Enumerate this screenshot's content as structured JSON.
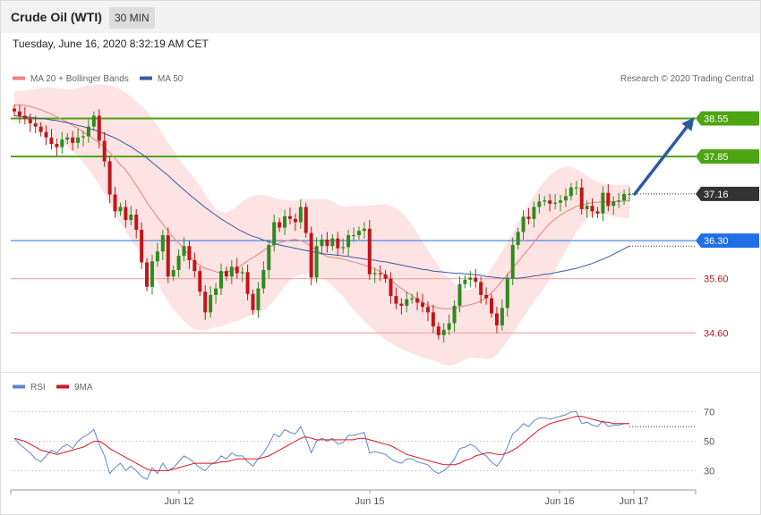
{
  "header": {
    "title": "Crude Oil (WTI)",
    "timeframe": "30 MIN"
  },
  "datetime": "Tuesday, June 16, 2020 8:32:19 AM CET",
  "legend": {
    "ma20": "MA 20 + Bollinger Bands",
    "ma50": "MA 50",
    "credit": "Research © 2020 Trading Central",
    "rsi": "RSI",
    "rsi_ma": "9MA"
  },
  "colors": {
    "bull": "#2e8b1f",
    "bear": "#c0161b",
    "bollinger_fill": "#fde3e3",
    "ma20": "#e98080",
    "ma50": "#3a5aa0",
    "rsi": "#5b86d6",
    "rsi_ma": "#e0141e",
    "resistance": "#4ea512",
    "support": "#1f6fe5",
    "support_light": "#f5a3a3",
    "arrow": "#2c5aa0",
    "last_price": "#333333"
  },
  "chart_data": [
    {
      "type": "candlestick",
      "title": "Crude Oil (WTI)",
      "timeframe": "30 MIN",
      "x_ticks": [
        "Jun 12",
        "Jun 15",
        "Jun 16",
        "Jun 17"
      ],
      "ylim": [
        33.8,
        39.2
      ],
      "levels": [
        {
          "label": "38.55",
          "value": 38.55,
          "kind": "resistance"
        },
        {
          "label": "37.85",
          "value": 37.85,
          "kind": "resistance"
        },
        {
          "label": "37.16",
          "value": 37.16,
          "kind": "last"
        },
        {
          "label": "36.30",
          "value": 36.3,
          "kind": "support"
        },
        {
          "label": "35.60",
          "value": 35.6,
          "kind": "support_light"
        },
        {
          "label": "34.60",
          "value": 34.6,
          "kind": "support_light"
        }
      ],
      "close": [
        38.68,
        38.6,
        38.54,
        38.46,
        38.4,
        38.3,
        38.2,
        38.08,
        38.02,
        38.16,
        38.2,
        38.1,
        38.2,
        38.22,
        38.4,
        38.6,
        38.14,
        37.76,
        37.15,
        36.84,
        36.92,
        36.68,
        36.78,
        36.5,
        35.9,
        35.45,
        35.92,
        36.1,
        36.4,
        35.64,
        35.76,
        36.02,
        36.2,
        35.94,
        35.74,
        35.36,
        34.98,
        35.3,
        35.42,
        35.74,
        35.64,
        35.82,
        35.7,
        35.72,
        35.32,
        35.02,
        35.42,
        35.76,
        36.22,
        36.64,
        36.54,
        36.75,
        36.7,
        36.64,
        36.92,
        36.44,
        35.62,
        36.2,
        36.32,
        36.2,
        36.34,
        36.16,
        36.18,
        36.4,
        36.4,
        36.48,
        36.52,
        35.68,
        35.7,
        35.68,
        35.6,
        35.28,
        35.14,
        35.1,
        35.22,
        35.24,
        35.16,
        35.08,
        34.98,
        34.72,
        34.56,
        34.66,
        34.78,
        35.1,
        35.5,
        35.58,
        35.62,
        35.54,
        35.3,
        35.24,
        34.96,
        34.74,
        35.06,
        35.6,
        36.22,
        36.46,
        36.74,
        36.7,
        36.92,
        37.02,
        37.04,
        36.98,
        37.0,
        37.04,
        37.12,
        37.28,
        37.28,
        36.88,
        36.94,
        36.84,
        36.8,
        37.18,
        36.94,
        37.02,
        37.04,
        37.16,
        37.16
      ],
      "ma20": [
        38.8,
        38.8,
        38.79,
        38.77,
        38.74,
        38.71,
        38.67,
        38.63,
        38.58,
        38.53,
        38.48,
        38.42,
        38.37,
        38.3,
        38.24,
        38.17,
        38.1,
        38.01,
        37.92,
        37.81,
        37.7,
        37.6,
        37.47,
        37.32,
        37.17,
        37.0,
        36.87,
        36.73,
        36.61,
        36.48,
        36.35,
        36.26,
        36.15,
        36.02,
        35.92,
        35.84,
        35.79,
        35.76,
        35.73,
        35.7,
        35.72,
        35.75,
        35.8,
        35.86,
        35.93,
        35.99,
        36.05,
        36.12,
        36.18,
        36.22,
        36.26,
        36.29,
        36.31,
        36.32,
        36.3,
        36.26,
        36.19,
        36.13,
        36.06,
        36.01,
        35.99,
        35.98,
        35.96,
        35.93,
        35.91,
        35.88,
        35.85,
        35.82,
        35.78,
        35.73,
        35.66,
        35.57,
        35.49,
        35.42,
        35.35,
        35.29,
        35.22,
        35.16,
        35.11,
        35.08,
        35.06,
        35.05,
        35.05,
        35.05,
        35.08,
        35.1,
        35.12,
        35.15,
        35.19,
        35.25,
        35.34,
        35.44,
        35.56,
        35.67,
        35.79,
        35.91,
        36.03,
        36.15,
        36.27,
        36.39,
        36.51,
        36.62,
        36.7,
        36.77,
        36.83,
        36.88,
        36.93,
        36.96,
        36.98,
        37.0,
        37.01,
        37.01,
        37.01,
        37.02,
        37.02,
        37.03,
        37.03
      ],
      "upper_band": [
        39.05,
        39.06,
        39.06,
        39.08,
        39.09,
        39.11,
        39.12,
        39.12,
        39.11,
        39.1,
        39.08,
        39.09,
        39.11,
        39.14,
        39.16,
        39.17,
        39.17,
        39.17,
        39.16,
        39.13,
        39.09,
        39.02,
        38.95,
        38.86,
        38.78,
        38.68,
        38.55,
        38.42,
        38.26,
        38.1,
        37.96,
        37.81,
        37.68,
        37.56,
        37.44,
        37.3,
        37.16,
        37.01,
        36.89,
        36.82,
        36.82,
        36.86,
        36.93,
        37.02,
        37.09,
        37.12,
        37.14,
        37.14,
        37.12,
        37.09,
        37.06,
        37.05,
        37.04,
        37.04,
        37.06,
        37.07,
        37.07,
        37.07,
        37.07,
        37.06,
        37.02,
        36.96,
        36.93,
        36.93,
        36.94,
        36.94,
        36.94,
        36.95,
        36.96,
        36.97,
        36.97,
        36.94,
        36.9,
        36.83,
        36.72,
        36.59,
        36.44,
        36.28,
        36.12,
        35.97,
        35.84,
        35.72,
        35.61,
        35.51,
        35.43,
        35.39,
        35.4,
        35.44,
        35.53,
        35.65,
        35.8,
        35.95,
        36.11,
        36.27,
        36.44,
        36.62,
        36.8,
        36.97,
        37.13,
        37.27,
        37.4,
        37.5,
        37.58,
        37.63,
        37.66,
        37.66,
        37.62,
        37.56,
        37.49,
        37.43,
        37.38,
        37.35,
        37.33,
        37.33,
        37.33,
        37.33,
        37.33
      ],
      "lower_band": [
        38.55,
        38.54,
        38.54,
        38.51,
        38.46,
        38.38,
        38.3,
        38.24,
        38.17,
        38.11,
        38.02,
        37.94,
        37.86,
        37.74,
        37.61,
        37.48,
        37.33,
        37.16,
        36.99,
        36.8,
        36.62,
        36.47,
        36.32,
        36.18,
        36.05,
        35.92,
        35.74,
        35.54,
        35.34,
        35.17,
        35.04,
        34.93,
        34.82,
        34.72,
        34.67,
        34.65,
        34.66,
        34.68,
        34.7,
        34.72,
        34.76,
        34.8,
        34.82,
        34.86,
        34.9,
        34.93,
        34.97,
        35.01,
        35.09,
        35.2,
        35.33,
        35.46,
        35.57,
        35.64,
        35.68,
        35.68,
        35.67,
        35.65,
        35.61,
        35.55,
        35.47,
        35.37,
        35.27,
        35.14,
        35.02,
        34.92,
        34.82,
        34.72,
        34.63,
        34.55,
        34.48,
        34.42,
        34.36,
        34.3,
        34.26,
        34.22,
        34.19,
        34.15,
        34.12,
        34.1,
        34.06,
        34.01,
        34.0,
        34.02,
        34.06,
        34.11,
        34.14,
        34.14,
        34.13,
        34.12,
        34.13,
        34.21,
        34.31,
        34.45,
        34.6,
        34.73,
        34.88,
        35.03,
        35.17,
        35.3,
        35.44,
        35.59,
        35.76,
        35.94,
        36.12,
        36.29,
        36.45,
        36.59,
        36.7,
        36.77,
        36.8,
        36.8,
        36.77,
        36.74,
        36.73,
        36.72,
        36.71
      ],
      "ma50": [
        38.6,
        38.59,
        38.58,
        38.57,
        38.56,
        38.55,
        38.54,
        38.52,
        38.51,
        38.49,
        38.47,
        38.45,
        38.42,
        38.4,
        38.37,
        38.34,
        38.31,
        38.27,
        38.23,
        38.19,
        38.14,
        38.08,
        38.03,
        37.96,
        37.9,
        37.82,
        37.74,
        37.66,
        37.58,
        37.5,
        37.41,
        37.32,
        37.24,
        37.15,
        37.07,
        36.99,
        36.91,
        36.84,
        36.77,
        36.7,
        36.64,
        36.58,
        36.52,
        36.47,
        36.42,
        36.38,
        36.35,
        36.31,
        36.28,
        36.25,
        36.22,
        36.2,
        36.18,
        36.16,
        36.14,
        36.12,
        36.1,
        36.08,
        36.06,
        36.05,
        36.04,
        36.03,
        36.02,
        36.01,
        35.99,
        35.98,
        35.96,
        35.95,
        35.94,
        35.92,
        35.91,
        35.89,
        35.87,
        35.85,
        35.83,
        35.81,
        35.79,
        35.77,
        35.76,
        35.74,
        35.73,
        35.72,
        35.71,
        35.7,
        35.7,
        35.69,
        35.68,
        35.67,
        35.66,
        35.64,
        35.63,
        35.62,
        35.61,
        35.61,
        35.61,
        35.61,
        35.62,
        35.63,
        35.65,
        35.66,
        35.68,
        35.69,
        35.71,
        35.73,
        35.75,
        35.77,
        35.79,
        35.82,
        35.85,
        35.88,
        35.92,
        35.96,
        36.0,
        36.05,
        36.1,
        36.15,
        36.2
      ]
    },
    {
      "type": "line",
      "x_ticks": [
        "Jun 12",
        "Jun 15",
        "Jun 16",
        "Jun 17"
      ],
      "ylim": [
        15,
        85
      ],
      "y_ticks": [
        30,
        50,
        70
      ],
      "dotted_value": 60,
      "series": [
        {
          "name": "RSI",
          "values": [
            52,
            48,
            45,
            42,
            38,
            36,
            40,
            44,
            42,
            46,
            48,
            45,
            50,
            53,
            55,
            58,
            48,
            40,
            28,
            32,
            35,
            30,
            33,
            30,
            26,
            24,
            32,
            28,
            35,
            30,
            32,
            36,
            40,
            38,
            35,
            32,
            30,
            34,
            36,
            40,
            38,
            42,
            40,
            40,
            36,
            33,
            38,
            42,
            48,
            55,
            53,
            58,
            56,
            55,
            60,
            52,
            42,
            50,
            52,
            50,
            52,
            48,
            49,
            54,
            54,
            55,
            56,
            42,
            43,
            42,
            41,
            38,
            36,
            35,
            38,
            38,
            36,
            35,
            34,
            30,
            28,
            30,
            33,
            38,
            45,
            46,
            48,
            46,
            42,
            40,
            36,
            33,
            38,
            46,
            55,
            58,
            62,
            60,
            64,
            66,
            66,
            65,
            66,
            67,
            68,
            70,
            70,
            62,
            63,
            61,
            60,
            64,
            60,
            61,
            61,
            62,
            62
          ]
        },
        {
          "name": "9MA",
          "values": [
            52,
            51,
            50,
            48,
            46,
            44,
            43,
            42,
            41,
            42,
            43,
            44,
            45,
            46,
            48,
            50,
            50,
            48,
            45,
            43,
            41,
            39,
            37,
            35,
            33,
            31,
            30,
            30,
            30,
            30,
            31,
            32,
            33,
            34,
            35,
            35,
            35,
            35,
            35,
            36,
            36,
            37,
            38,
            38,
            38,
            38,
            38,
            39,
            40,
            42,
            44,
            46,
            48,
            50,
            52,
            53,
            52,
            51,
            51,
            51,
            51,
            51,
            51,
            51,
            51,
            52,
            52,
            51,
            50,
            49,
            48,
            47,
            45,
            43,
            41,
            40,
            39,
            38,
            37,
            36,
            35,
            34,
            34,
            34,
            35,
            37,
            38,
            40,
            41,
            42,
            42,
            41,
            41,
            42,
            44,
            46,
            49,
            52,
            55,
            58,
            60,
            62,
            63,
            64,
            65,
            66,
            67,
            67,
            66,
            65,
            64,
            63,
            63,
            62,
            62,
            62,
            62
          ]
        }
      ]
    }
  ]
}
